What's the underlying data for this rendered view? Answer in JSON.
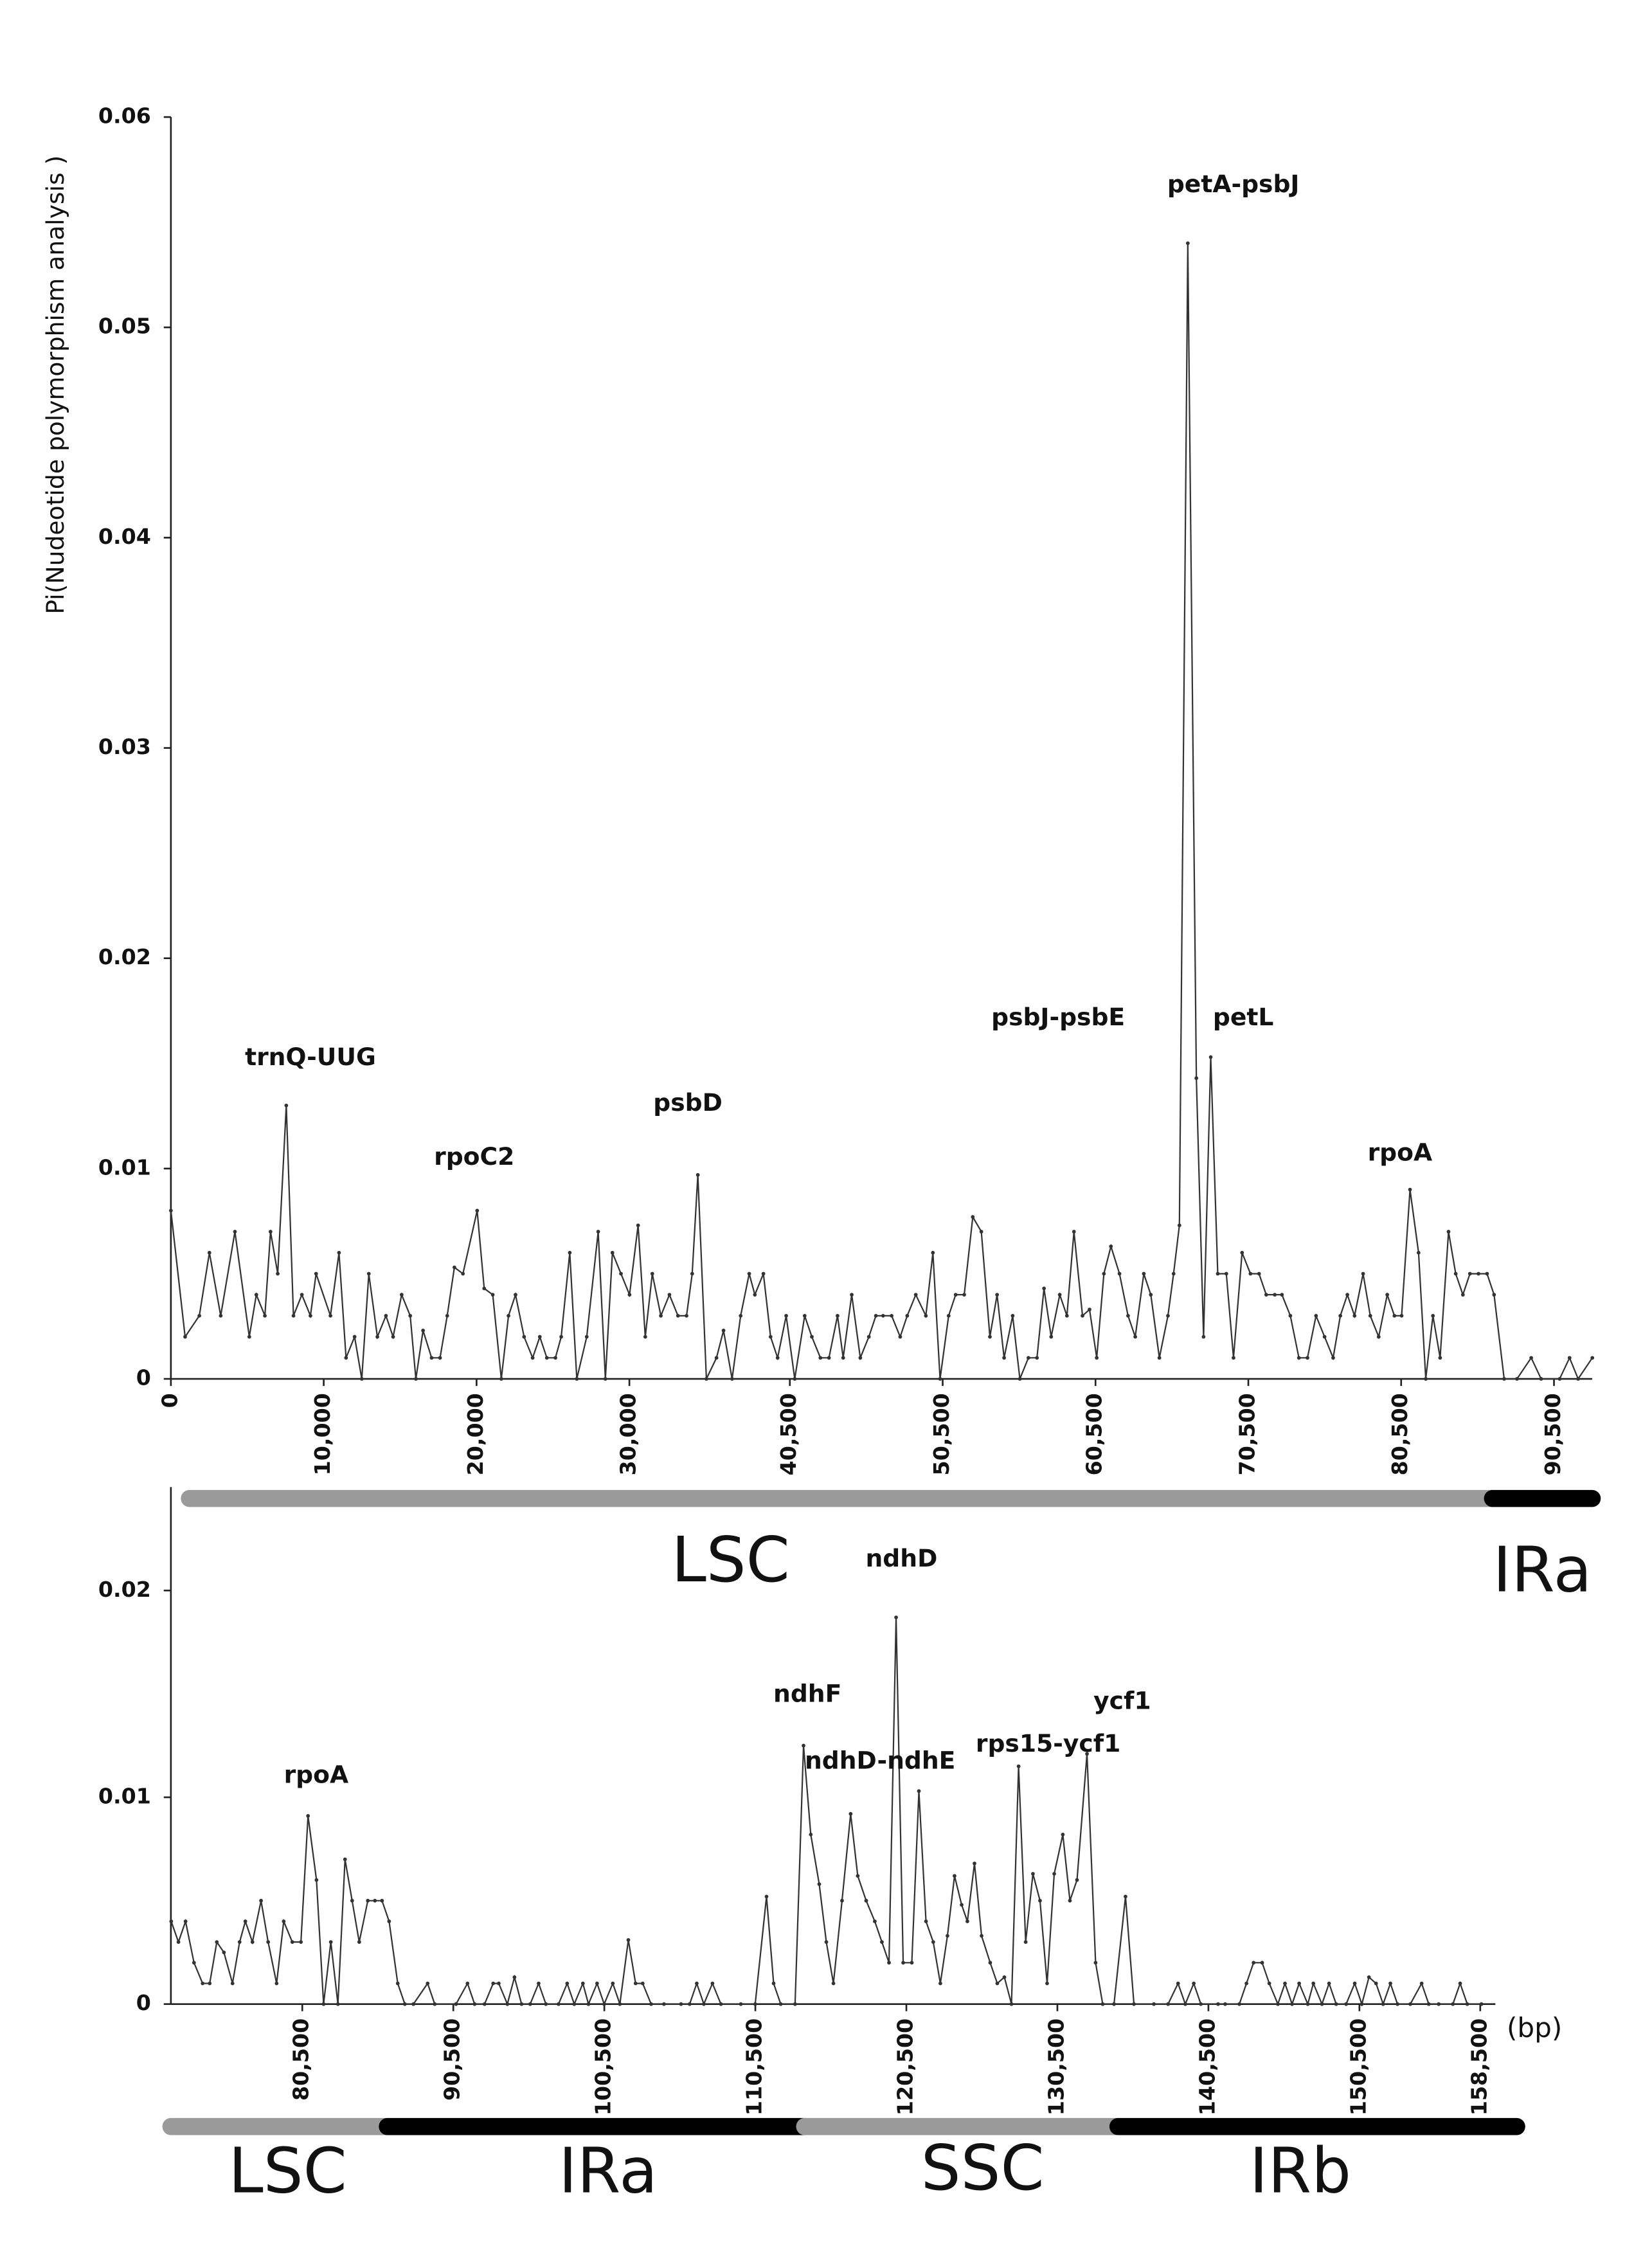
{
  "chart_data": [
    {
      "type": "line",
      "ylabel": "Pi(Nudeotide polymorphism analysis )",
      "color": "#333333",
      "xlim": [
        0,
        93000
      ],
      "ylim": [
        0,
        0.06
      ],
      "yticks": [
        0,
        0.01,
        0.02,
        0.03,
        0.04,
        0.05,
        0.06
      ],
      "xticks": [
        0,
        {
          "value": 10000,
          "label": "10,000"
        },
        {
          "value": 20000,
          "label": "20,000"
        },
        {
          "value": 30000,
          "label": "30,000"
        },
        {
          "value": 40500,
          "label": "40,500"
        },
        {
          "value": 50500,
          "label": "50,500"
        },
        {
          "value": 60500,
          "label": "60,500"
        },
        {
          "value": 70500,
          "label": "70,500"
        },
        {
          "value": 80500,
          "label": "80,500"
        },
        {
          "value": 90500,
          "label": "90,500"
        }
      ],
      "annotations": [
        "trnQ-UUG",
        "rpoC2",
        "psbD",
        "psbJ-psbE",
        "petA-psbJ",
        "petL",
        "rpoA"
      ],
      "region_labels": [
        "LSC",
        "IRa"
      ],
      "x": [
        0,
        930,
        1860,
        2520,
        3260,
        4190,
        5130,
        5590,
        6150,
        6520,
        6990,
        7550,
        8020,
        8570,
        9130,
        9500,
        10440,
        11000,
        11460,
        12020,
        12490,
        12950,
        13510,
        14070,
        14540,
        15100,
        15660,
        16030,
        16500,
        17060,
        17610,
        18080,
        18550,
        19110,
        20040,
        20500,
        21060,
        21620,
        22090,
        22550,
        23110,
        23670,
        24140,
        24600,
        25160,
        25540,
        26100,
        26560,
        27210,
        27960,
        28430,
        28890,
        29450,
        30010,
        30570,
        31040,
        31500,
        32060,
        32620,
        33180,
        33740,
        34110,
        34480,
        35040,
        35700,
        36160,
        36720,
        37280,
        37840,
        38210,
        38770,
        39240,
        39700,
        40260,
        40820,
        41470,
        41940,
        42500,
        43060,
        43620,
        43990,
        44550,
        45110,
        45670,
        46130,
        46600,
        47160,
        47720,
        48180,
        48740,
        49400,
        49860,
        50330,
        50890,
        51350,
        51910,
        52470,
        53030,
        53590,
        54060,
        54520,
        55080,
        55550,
        56110,
        56670,
        57130,
        57600,
        58160,
        58630,
        59090,
        59650,
        60110,
        60580,
        61050,
        61510,
        62070,
        62630,
        63100,
        63660,
        64120,
        64680,
        65240,
        65610,
        65990,
        66540,
        67100,
        67570,
        68040,
        68500,
        69060,
        69530,
        70090,
        70640,
        71200,
        71670,
        72230,
        72700,
        73250,
        73810,
        74370,
        74930,
        75490,
        76050,
        76520,
        76980,
        77450,
        78010,
        78480,
        79030,
        79590,
        80060,
        80530,
        81080,
        81640,
        82110,
        82580,
        83050,
        83600,
        84070,
        84540,
        85000,
        85560,
        86120,
        86580,
        87240,
        88080,
        89010,
        89660,
        90870,
        91520,
        92080,
        93010
      ],
      "values": [
        0.008,
        0.002,
        0.003,
        0.006,
        0.003,
        0.007,
        0.002,
        0.004,
        0.003,
        0.007,
        0.005,
        0.013,
        0.003,
        0.004,
        0.003,
        0.005,
        0.003,
        0.006,
        0.001,
        0.002,
        0,
        0.005,
        0.002,
        0.003,
        0.002,
        0.004,
        0.003,
        0,
        0.0023,
        0.001,
        0.001,
        0.003,
        0.0053,
        0.005,
        0.008,
        0.0043,
        0.004,
        0,
        0.003,
        0.004,
        0.002,
        0.001,
        0.002,
        0.001,
        0.001,
        0.002,
        0.006,
        0,
        0.002,
        0.007,
        0,
        0.006,
        0.005,
        0.004,
        0.0073,
        0.002,
        0.005,
        0.003,
        0.004,
        0.003,
        0.003,
        0.005,
        0.0097,
        0,
        0.001,
        0.0023,
        0,
        0.003,
        0.005,
        0.004,
        0.005,
        0.002,
        0.001,
        0.003,
        0,
        0.003,
        0.002,
        0.001,
        0.001,
        0.003,
        0.001,
        0.004,
        0.001,
        0.002,
        0.003,
        0.003,
        0.003,
        0.002,
        0.003,
        0.004,
        0.003,
        0.006,
        0,
        0.003,
        0.004,
        0.004,
        0.0077,
        0.007,
        0.002,
        0.004,
        0.001,
        0.003,
        0,
        0.001,
        0.001,
        0.0043,
        0.002,
        0.004,
        0.003,
        0.007,
        0.003,
        0.0033,
        0.001,
        0.005,
        0.0063,
        0.005,
        0.003,
        0.002,
        0.005,
        0.004,
        0.001,
        0.003,
        0.005,
        0.0073,
        0.054,
        0.0143,
        0.002,
        0.0153,
        0.005,
        0.005,
        0.001,
        0.006,
        0.005,
        0.005,
        0.004,
        0.004,
        0.004,
        0.003,
        0.001,
        0.001,
        0.003,
        0.002,
        0.001,
        0.003,
        0.004,
        0.003,
        0.005,
        0.003,
        0.002,
        0.004,
        0.003,
        0.003,
        0.009,
        0.006,
        0,
        0.003,
        0.001,
        0.007,
        0.005,
        0.004,
        0.005,
        0.005,
        0.005,
        0.004,
        0,
        0,
        0.001,
        0,
        0,
        0.001,
        0,
        0.001
      ]
    },
    {
      "type": "line",
      "xlabel": "(bp)",
      "color": "#333333",
      "xlim": [
        71800,
        159500
      ],
      "ylim": [
        0,
        0.025
      ],
      "yticks": [
        0,
        0.01,
        0.02
      ],
      "xticks": [
        {
          "value": 80500,
          "label": "80,500"
        },
        {
          "value": 90500,
          "label": "90,500"
        },
        {
          "value": 100500,
          "label": "100,500"
        },
        {
          "value": 110500,
          "label": "110,500"
        },
        {
          "value": 120500,
          "label": "120,500"
        },
        {
          "value": 130500,
          "label": "130,500"
        },
        {
          "value": 140500,
          "label": "140,500"
        },
        {
          "value": 150500,
          "label": "150,500"
        },
        {
          "value": 158500,
          "label": "158,500"
        }
      ],
      "annotations": [
        "rpoA",
        "ndhD",
        "ndhF",
        "ndhD-ndhE",
        "rps15-ycf1",
        "ycf1"
      ],
      "region_labels": [
        "LSC",
        "IRa",
        "SSC",
        "IRb"
      ],
      "x": [
        71820,
        72300,
        72770,
        73330,
        73900,
        74370,
        74840,
        75310,
        75880,
        76350,
        76730,
        77200,
        77770,
        78240,
        78800,
        79270,
        79840,
        80410,
        80880,
        81440,
        81910,
        82390,
        82860,
        83330,
        83800,
        84270,
        84840,
        85310,
        85780,
        86250,
        86820,
        87290,
        87860,
        88800,
        89270,
        90680,
        91440,
        91910,
        92570,
        93140,
        93510,
        94080,
        94550,
        95020,
        95590,
        96150,
        96630,
        97470,
        98040,
        98510,
        99080,
        99450,
        100020,
        100490,
        101060,
        101530,
        102090,
        102570,
        103040,
        103600,
        104450,
        105580,
        106150,
        106620,
        107090,
        107660,
        108220,
        109540,
        110490,
        111240,
        111710,
        112180,
        113130,
        113690,
        114170,
        114730,
        115200,
        115670,
        116240,
        116810,
        117280,
        117840,
        118410,
        118880,
        119350,
        119820,
        120290,
        120860,
        121330,
        121800,
        122280,
        122750,
        123220,
        123690,
        124160,
        124540,
        125010,
        125480,
        126050,
        126520,
        126990,
        127460,
        127930,
        128400,
        128880,
        129350,
        129820,
        130290,
        130860,
        131330,
        131800,
        132460,
        133030,
        133500,
        134250,
        135010,
        135570,
        136890,
        137830,
        138490,
        138970,
        139530,
        140000,
        141140,
        141610,
        142550,
        143020,
        143490,
        144060,
        144530,
        145100,
        145570,
        146040,
        146510,
        147080,
        147450,
        148020,
        148490,
        148960,
        149620,
        150190,
        150660,
        151130,
        151600,
        152070,
        152550,
        153020,
        153870,
        154620,
        155090,
        155750,
        156690,
        157170,
        157640,
        158580
      ],
      "values": [
        0.004,
        0.003,
        0.004,
        0.002,
        0.001,
        0.001,
        0.003,
        0.0025,
        0.001,
        0.003,
        0.004,
        0.003,
        0.005,
        0.003,
        0.001,
        0.004,
        0.003,
        0.003,
        0.0091,
        0.006,
        0,
        0.003,
        0,
        0.007,
        0.005,
        0.003,
        0.005,
        0.005,
        0.005,
        0.004,
        0.001,
        0,
        0,
        0.001,
        0,
        0,
        0.001,
        0,
        0,
        0.001,
        0.001,
        0,
        0.0013,
        0,
        0,
        0.001,
        0,
        0,
        0.001,
        0,
        0.001,
        0,
        0.001,
        0,
        0.001,
        0,
        0.0031,
        0.001,
        0.001,
        0,
        0,
        0,
        0,
        0.001,
        0,
        0.001,
        0,
        0,
        0,
        0.0052,
        0.001,
        0,
        0,
        0.0125,
        0.0082,
        0.0058,
        0.003,
        0.001,
        0.005,
        0.0092,
        0.0062,
        0.005,
        0.004,
        0.003,
        0.002,
        0.0187,
        0.002,
        0.002,
        0.0103,
        0.004,
        0.003,
        0.001,
        0.0033,
        0.0062,
        0.0048,
        0.004,
        0.0068,
        0.0033,
        0.002,
        0.001,
        0.0013,
        0,
        0.0115,
        0.003,
        0.0063,
        0.005,
        0.001,
        0.0063,
        0.0082,
        0.005,
        0.006,
        0.0121,
        0.002,
        0,
        0,
        0.0052,
        0,
        0,
        0,
        0.001,
        0,
        0.001,
        0,
        0,
        0,
        0,
        0.001,
        0.002,
        0.002,
        0.001,
        0,
        0.001,
        0,
        0.001,
        0,
        0.001,
        0,
        0.001,
        0,
        0,
        0.001,
        0,
        0.0013,
        0.001,
        0,
        0.001,
        0,
        0,
        0.001,
        0,
        0,
        0,
        0.001,
        0,
        0
      ]
    }
  ]
}
